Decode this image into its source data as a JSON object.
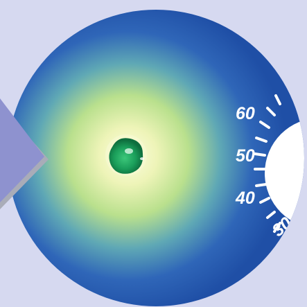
{
  "scale": {
    "labels": [
      "60",
      "50",
      "40",
      "30"
    ]
  },
  "colors": {
    "background": "#d6d9f0",
    "disc_edge": "#1f4fa6",
    "glow_center": "#f4f7c2",
    "glow_mid": "#a8d98a",
    "indicator": "#1a9e5a",
    "pointer": "#8e92cf",
    "pointer_shadow": "#a9acb8"
  }
}
